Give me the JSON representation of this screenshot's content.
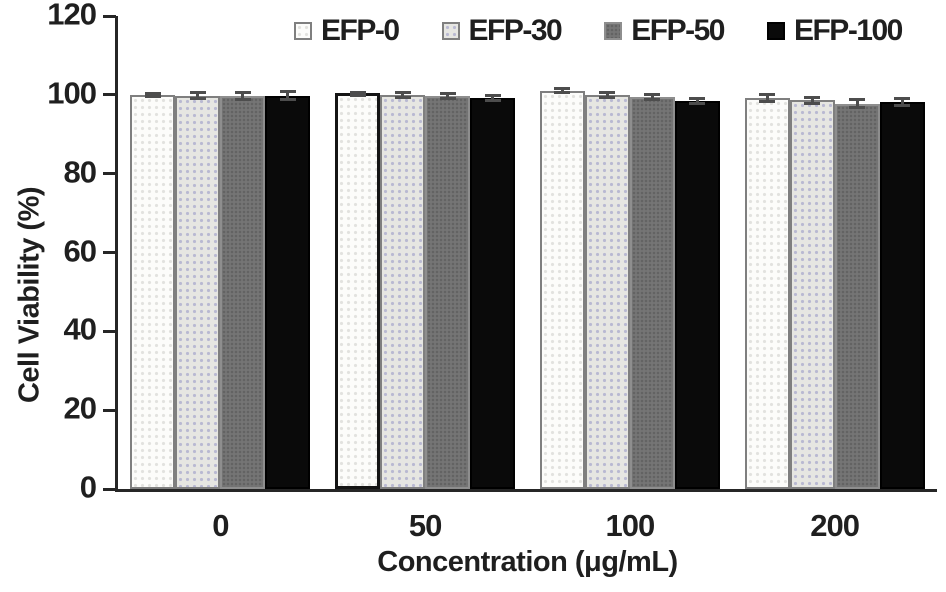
{
  "chart_data": {
    "type": "bar",
    "title": "",
    "xlabel": "Concentration (μg/mL)",
    "ylabel": "Cell Viability (%)",
    "categories": [
      "0",
      "50",
      "100",
      "200"
    ],
    "y_ticks": [
      0,
      20,
      40,
      60,
      80,
      100,
      120
    ],
    "ylim": [
      0,
      120
    ],
    "grid": false,
    "legend_position": "top",
    "axis_color": "#262626",
    "error_bar_color": "#4d4d4d",
    "series": [
      {
        "name": "EFP-0",
        "fill": "#fcfcfa",
        "pattern_dot": "#e2e2df",
        "border": "#7f7f7f",
        "values": [
          100.0,
          100.4,
          101.0,
          99.2
        ],
        "errors": [
          0.6,
          0.6,
          0.9,
          1.3
        ]
      },
      {
        "name": "EFP-30",
        "fill": "#e6e6e2",
        "pattern_dot": "#b9b9d2",
        "border": "#7f7f7f",
        "values": [
          99.8,
          99.9,
          100.0,
          98.6
        ],
        "errors": [
          1.1,
          1.0,
          1.0,
          1.2
        ]
      },
      {
        "name": "EFP-50",
        "fill": "#757575",
        "pattern_dot": "#636363",
        "border": "#8e8e8e",
        "values": [
          99.7,
          99.8,
          99.4,
          97.8
        ],
        "errors": [
          1.2,
          1.0,
          1.0,
          1.5
        ]
      },
      {
        "name": "EFP-100",
        "fill": "#0a0a0a",
        "pattern_dot": "#0a0a0a",
        "border": "#000000",
        "values": [
          99.8,
          99.3,
          98.4,
          98.2
        ],
        "errors": [
          1.4,
          1.0,
          1.1,
          1.2
        ]
      }
    ],
    "highlighted_bar": {
      "series": "EFP-0",
      "category": "50",
      "outline": "#141414"
    }
  }
}
